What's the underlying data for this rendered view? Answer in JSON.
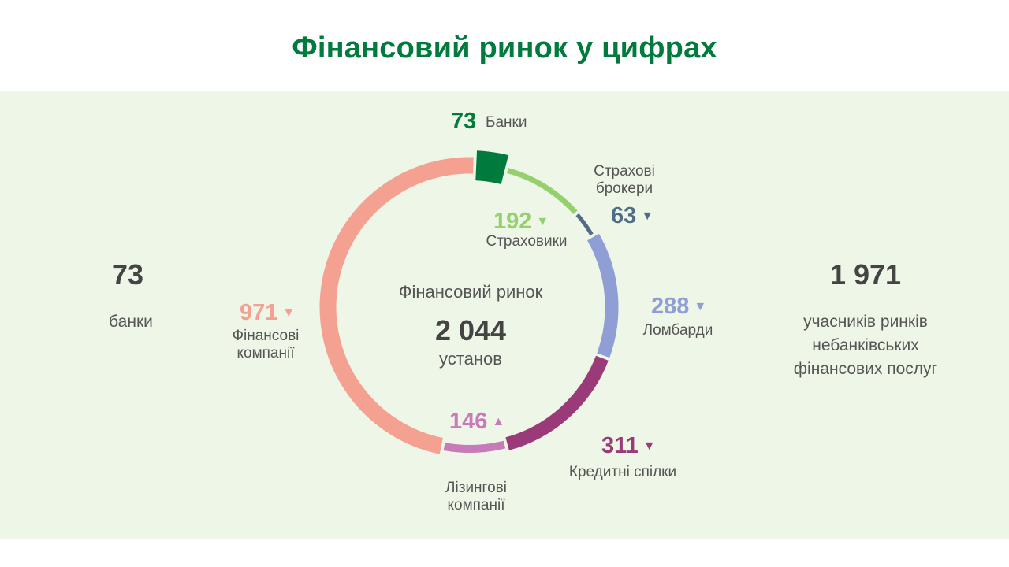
{
  "title": "Фінансовий ринок у цифрах",
  "left": {
    "value": "73",
    "label": "банки"
  },
  "right": {
    "value": "1 971",
    "label_lines": [
      "учасників ринків",
      "небанківських",
      "фінансових послуг"
    ]
  },
  "center": {
    "caption": "Фінансовий ринок",
    "total": "2 044",
    "unit": "установ"
  },
  "chart_data": {
    "type": "pie",
    "variant": "donut",
    "total": 2044,
    "segments": [
      {
        "label": "Банки",
        "value": 73,
        "color": "#007a3d",
        "trend": ""
      },
      {
        "label": "Страховики",
        "value": 192,
        "color": "#94d06e",
        "trend": "down"
      },
      {
        "label": "Страхові брокери",
        "value": 63,
        "color": "#4f6e85",
        "trend": "down"
      },
      {
        "label": "Ломбарди",
        "value": 288,
        "color": "#8f9ed4",
        "trend": "down"
      },
      {
        "label": "Кредитні спілки",
        "value": 311,
        "color": "#9a3a78",
        "trend": "down"
      },
      {
        "label": "Лізингові компанії",
        "value": 146,
        "color": "#c97ab8",
        "trend": "up"
      },
      {
        "label": "Фінансові компанії",
        "value": 971,
        "color": "#f4a192",
        "trend": "down"
      }
    ]
  },
  "labels": {
    "banks": {
      "value": "73",
      "name": "Банки"
    },
    "insurers": {
      "value": "192",
      "name": "Страховики",
      "arrow": "▼"
    },
    "brokers": {
      "value": "63",
      "name_lines": [
        "Страхові",
        "брокери"
      ],
      "arrow": "▼"
    },
    "pawnshops": {
      "value": "288",
      "name": "Ломбарди",
      "arrow": "▼"
    },
    "credit_unions": {
      "value": "311",
      "name": "Кредитні спілки",
      "arrow": "▼"
    },
    "leasing": {
      "value": "146",
      "name_lines": [
        "Лізингові",
        "компанії"
      ],
      "arrow": "▲"
    },
    "finance_companies": {
      "value": "971",
      "name_lines": [
        "Фінансові",
        "компанії"
      ],
      "arrow": "▼"
    }
  }
}
